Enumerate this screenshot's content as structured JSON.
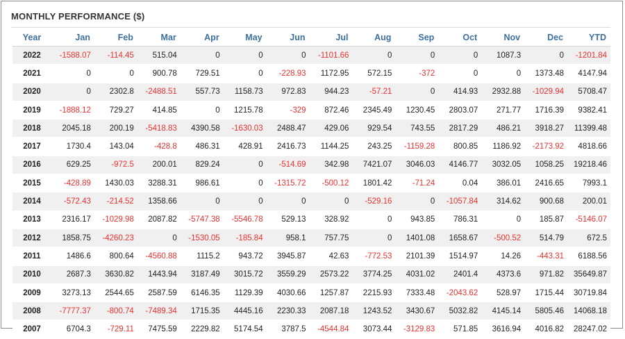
{
  "title": "MONTHLY PERFORMANCE ($)",
  "colors": {
    "header": "#3d6f9e",
    "negative": "#e8312f",
    "row_alt": "#f0f0f0"
  },
  "columns": [
    "Year",
    "Jan",
    "Feb",
    "Mar",
    "Apr",
    "May",
    "Jun",
    "Jul",
    "Aug",
    "Sep",
    "Oct",
    "Nov",
    "Dec",
    "YTD"
  ],
  "rows": [
    [
      "2022",
      "-1588.07",
      "-114.45",
      "515.04",
      "0",
      "0",
      "0",
      "-1101.66",
      "0",
      "0",
      "0",
      "1087.3",
      "0",
      "-1201.84"
    ],
    [
      "2021",
      "0",
      "0",
      "900.78",
      "729.51",
      "0",
      "-228.93",
      "1172.95",
      "572.15",
      "-372",
      "0",
      "0",
      "1373.48",
      "4147.94"
    ],
    [
      "2020",
      "0",
      "2302.8",
      "-2488.51",
      "557.73",
      "1158.73",
      "972.83",
      "944.23",
      "-57.21",
      "0",
      "414.93",
      "2932.88",
      "-1029.94",
      "5708.47"
    ],
    [
      "2019",
      "-1888.12",
      "729.27",
      "414.85",
      "0",
      "1215.78",
      "-329",
      "872.46",
      "2345.49",
      "1230.45",
      "2803.07",
      "271.77",
      "1716.39",
      "9382.41"
    ],
    [
      "2018",
      "2045.18",
      "200.19",
      "-5418.83",
      "4390.58",
      "-1630.03",
      "2488.47",
      "429.06",
      "929.54",
      "743.55",
      "2817.29",
      "486.21",
      "3918.27",
      "11399.48"
    ],
    [
      "2017",
      "1730.4",
      "143.04",
      "-428.8",
      "486.31",
      "428.91",
      "2416.73",
      "1144.25",
      "243.25",
      "-1159.28",
      "800.85",
      "1186.92",
      "-2173.92",
      "4818.66"
    ],
    [
      "2016",
      "629.25",
      "-972.5",
      "200.01",
      "829.24",
      "0",
      "-514.69",
      "342.98",
      "7421.07",
      "3046.03",
      "4146.77",
      "3032.05",
      "1058.25",
      "19218.46"
    ],
    [
      "2015",
      "-428.89",
      "1430.03",
      "3288.31",
      "986.61",
      "0",
      "-1315.72",
      "-500.12",
      "1801.42",
      "-71.24",
      "0.04",
      "386.01",
      "2416.65",
      "7993.1"
    ],
    [
      "2014",
      "-572.43",
      "-214.52",
      "1358.66",
      "0",
      "0",
      "0",
      "0",
      "-529.16",
      "0",
      "-1057.84",
      "314.62",
      "900.68",
      "200.01"
    ],
    [
      "2013",
      "2316.17",
      "-1029.98",
      "2087.82",
      "-5747.38",
      "-5546.78",
      "529.13",
      "328.92",
      "0",
      "943.85",
      "786.31",
      "0",
      "185.87",
      "-5146.07"
    ],
    [
      "2012",
      "1858.75",
      "-4260.23",
      "0",
      "-1530.05",
      "-185.84",
      "958.1",
      "757.75",
      "0",
      "1401.08",
      "1658.67",
      "-500.52",
      "514.79",
      "672.5"
    ],
    [
      "2011",
      "1486.6",
      "800.64",
      "-4560.88",
      "1115.2",
      "943.72",
      "3945.87",
      "42.63",
      "-772.53",
      "2101.39",
      "1514.97",
      "14.26",
      "-443.31",
      "6188.56"
    ],
    [
      "2010",
      "2687.3",
      "3630.82",
      "1443.94",
      "3187.49",
      "3015.72",
      "3559.29",
      "2573.22",
      "3774.25",
      "4031.02",
      "2401.4",
      "4373.6",
      "971.82",
      "35649.87"
    ],
    [
      "2009",
      "3273.13",
      "2544.65",
      "2587.59",
      "6146.35",
      "1129.39",
      "4030.66",
      "1257.87",
      "2215.93",
      "7333.48",
      "-2043.62",
      "528.97",
      "1715.44",
      "30719.84"
    ],
    [
      "2008",
      "-7777.37",
      "-800.74",
      "-7489.34",
      "1715.35",
      "4445.16",
      "2230.33",
      "2087.18",
      "1243.52",
      "3430.67",
      "5032.82",
      "4145.14",
      "5805.46",
      "14068.18"
    ],
    [
      "2007",
      "6704.3",
      "-729.11",
      "7475.59",
      "2229.82",
      "5174.54",
      "3787.5",
      "-4544.84",
      "3073.44",
      "-3129.83",
      "571.85",
      "3616.94",
      "4016.82",
      "28247.02"
    ]
  ]
}
